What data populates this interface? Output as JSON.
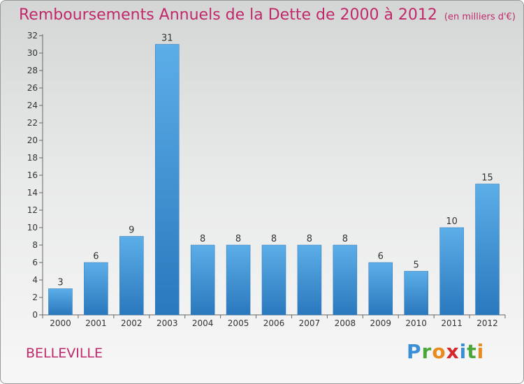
{
  "title": "Remboursements Annuels de la Dette de 2000 à 2012",
  "subtitle": "(en milliers d'€)",
  "commune": "BELLEVILLE",
  "logo": {
    "letters": [
      "P",
      "r",
      "o",
      "x",
      "i",
      "t",
      "i"
    ],
    "colors": [
      "#3b8fd6",
      "#4aa83a",
      "#e98a1e",
      "#d6262e",
      "#3b8fd6",
      "#4aa83a",
      "#e98a1e"
    ]
  },
  "colors": {
    "bar": "#3d96dc",
    "accent": "#c0286a"
  },
  "chart_data": {
    "type": "bar",
    "title": "Remboursements Annuels de la Dette de 2000 à 2012",
    "subtitle": "(en milliers d'€)",
    "categories": [
      "2000",
      "2001",
      "2002",
      "2003",
      "2004",
      "2005",
      "2006",
      "2007",
      "2008",
      "2009",
      "2010",
      "2011",
      "2012"
    ],
    "values": [
      3,
      6,
      9,
      31,
      8,
      8,
      8,
      8,
      8,
      6,
      5,
      10,
      15
    ],
    "data_labels": [
      "3",
      "6",
      "9",
      "31",
      "8",
      "8",
      "8",
      "8",
      "8",
      "6",
      "5",
      "10",
      "15"
    ],
    "ylim": [
      0,
      32
    ],
    "yticks": [
      0,
      2,
      4,
      6,
      8,
      10,
      12,
      14,
      16,
      18,
      20,
      22,
      24,
      26,
      28,
      30,
      32
    ],
    "grid": false,
    "legend": "none"
  }
}
